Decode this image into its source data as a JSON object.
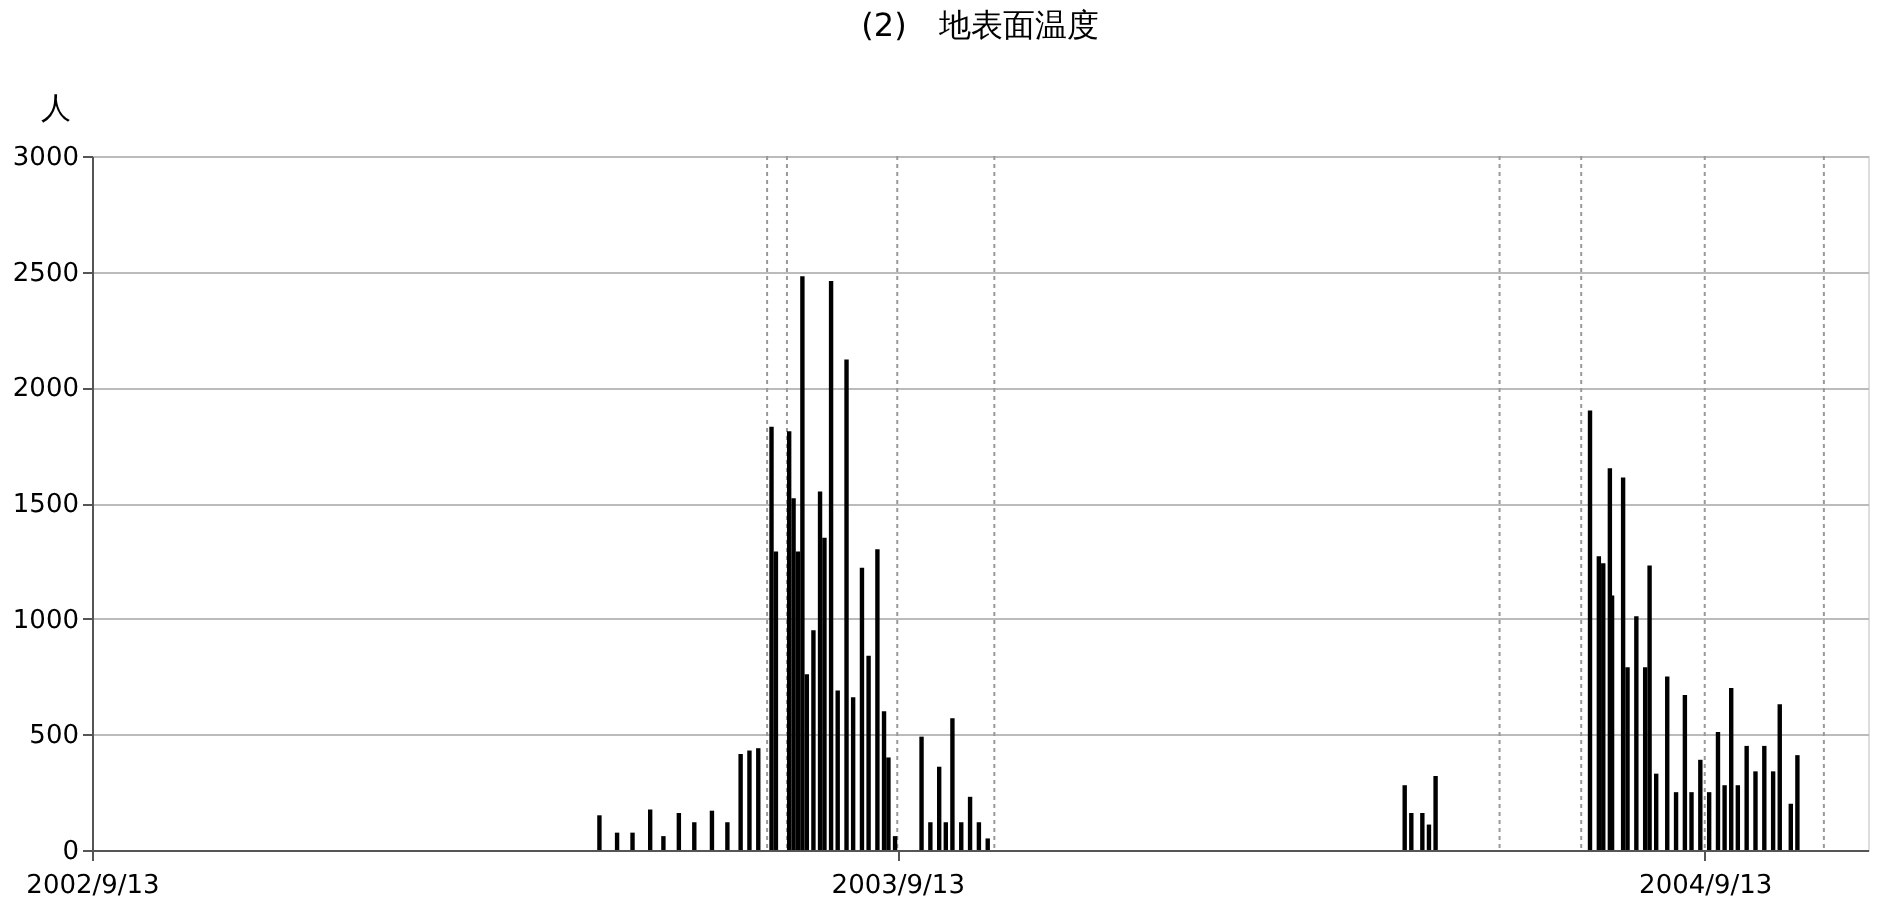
{
  "chart_data": {
    "type": "bar",
    "title": "(2)　地表面温度",
    "ylabel": "人",
    "color": "#000000",
    "x": [
      "2003-05-01",
      "2003-05-09",
      "2003-05-16",
      "2003-05-24",
      "2003-05-30",
      "2003-06-06",
      "2003-06-13",
      "2003-06-21",
      "2003-06-28",
      "2003-07-04",
      "2003-07-08",
      "2003-07-12",
      "2003-07-18",
      "2003-07-20",
      "2003-07-26",
      "2003-07-28",
      "2003-07-30",
      "2003-08-01",
      "2003-08-03",
      "2003-08-06",
      "2003-08-09",
      "2003-08-11",
      "2003-08-14",
      "2003-08-17",
      "2003-08-21",
      "2003-08-24",
      "2003-08-28",
      "2003-08-31",
      "2003-09-04",
      "2003-09-07",
      "2003-09-09",
      "2003-09-12",
      "2003-09-24",
      "2003-09-28",
      "2003-10-02",
      "2003-10-05",
      "2003-10-08",
      "2003-10-12",
      "2003-10-16",
      "2003-10-20",
      "2003-10-24",
      "2004-04-30",
      "2004-05-03",
      "2004-05-08",
      "2004-05-11",
      "2004-05-14",
      "2004-07-23",
      "2004-07-27",
      "2004-07-29",
      "2004-08-01",
      "2004-08-02",
      "2004-08-07",
      "2004-08-09",
      "2004-08-13",
      "2004-08-17",
      "2004-08-19",
      "2004-08-22",
      "2004-08-27",
      "2004-08-31",
      "2004-09-04",
      "2004-09-07",
      "2004-09-11",
      "2004-09-15",
      "2004-09-19",
      "2004-09-22",
      "2004-09-25",
      "2004-09-28",
      "2004-10-02",
      "2004-10-06",
      "2004-10-10",
      "2004-10-14",
      "2004-10-17",
      "2004-10-22",
      "2004-10-25"
    ],
    "values": [
      150,
      75,
      75,
      175,
      60,
      160,
      120,
      170,
      120,
      415,
      430,
      440,
      1830,
      1290,
      1810,
      1520,
      1290,
      2480,
      760,
      950,
      1550,
      1350,
      2460,
      690,
      2120,
      660,
      1220,
      840,
      1300,
      600,
      400,
      60,
      490,
      120,
      360,
      120,
      570,
      120,
      230,
      120,
      50,
      280,
      160,
      160,
      110,
      320,
      1900,
      1270,
      1240,
      1650,
      1100,
      1610,
      790,
      1010,
      790,
      1230,
      330,
      750,
      250,
      670,
      250,
      390,
      250,
      510,
      280,
      700,
      280,
      450,
      340,
      450,
      340,
      630,
      200,
      410
    ],
    "xlim": [
      "2002-09-13",
      "2004-11-26"
    ],
    "xticks": [
      {
        "value": "2002-09-13",
        "label": "2002/9/13"
      },
      {
        "value": "2003-09-13",
        "label": "2003/9/13"
      },
      {
        "value": "2004-09-13",
        "label": "2004/9/13"
      }
    ],
    "ylim": [
      0,
      3000
    ],
    "yticks": [
      0,
      500,
      1000,
      1500,
      2000,
      2500,
      3000
    ],
    "grid": "y",
    "ref_lines": [
      {
        "axis": "x",
        "value": "2003-07-16",
        "label": null,
        "color": "#999999",
        "line_style": "dotted"
      },
      {
        "axis": "x",
        "value": "2003-07-25",
        "label": null,
        "color": "#999999",
        "line_style": "dotted"
      },
      {
        "axis": "x",
        "value": "2003-09-13",
        "label": null,
        "color": "#999999",
        "line_style": "dotted"
      },
      {
        "axis": "x",
        "value": "2003-10-27",
        "label": null,
        "color": "#999999",
        "line_style": "dotted"
      },
      {
        "axis": "x",
        "value": "2004-06-12",
        "label": null,
        "color": "#999999",
        "line_style": "dotted"
      },
      {
        "axis": "x",
        "value": "2004-07-19",
        "label": null,
        "color": "#999999",
        "line_style": "dotted"
      },
      {
        "axis": "x",
        "value": "2004-09-13",
        "label": null,
        "color": "#999999",
        "line_style": "dotted"
      },
      {
        "axis": "x",
        "value": "2004-11-06",
        "label": null,
        "color": "#999999",
        "line_style": "dotted"
      }
    ]
  }
}
